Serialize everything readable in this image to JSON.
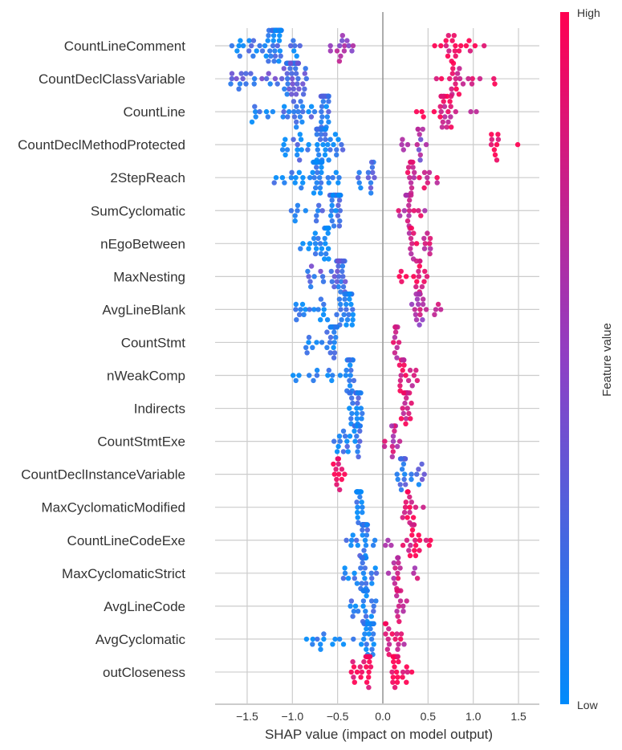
{
  "chart_data": {
    "type": "scatter",
    "subtype": "shap-beeswarm",
    "title": "",
    "xlabel": "SHAP value (impact on model output)",
    "ylabel": "",
    "xlim": [
      -1.85,
      1.75
    ],
    "xticks": [
      -1.5,
      -1.0,
      -0.5,
      0.0,
      0.5,
      1.0,
      1.5
    ],
    "xtick_labels": [
      "−1.5",
      "−1.0",
      "−0.5",
      "0.0",
      "0.5",
      "1.0",
      "1.5"
    ],
    "grid": true,
    "colorbar": {
      "title": "Feature value",
      "high_label": "High",
      "low_label": "Low",
      "low_color": "#008bfb",
      "mid_color": "#8f3fc4",
      "high_color": "#ff0051",
      "placement": "right"
    },
    "features": [
      {
        "name": "CountLineComment",
        "clusters": [
          {
            "min": -1.68,
            "max": -0.88,
            "peak": -1.18,
            "count": 70,
            "value": 0.1
          },
          {
            "min": -0.62,
            "max": -0.27,
            "peak": -0.45,
            "count": 14,
            "value": 0.55
          },
          {
            "min": 0.5,
            "max": 1.22,
            "peak": 0.75,
            "count": 20,
            "value": 0.95
          }
        ]
      },
      {
        "name": "CountDeclClassVariable",
        "clusters": [
          {
            "min": -1.72,
            "max": -0.77,
            "peak": -1.0,
            "count": 90,
            "value": 0.25
          },
          {
            "min": 0.5,
            "max": 1.33,
            "peak": 0.8,
            "count": 22,
            "value": 0.9
          }
        ]
      },
      {
        "name": "CountLine",
        "clusters": [
          {
            "min": -1.47,
            "max": -0.6,
            "peak": -0.62,
            "count": 75,
            "value": 0.15
          },
          {
            "min": 0.3,
            "max": 1.23,
            "peak": 0.7,
            "count": 30,
            "value": 0.85
          }
        ]
      },
      {
        "name": "CountDeclMethodProtected",
        "clusters": [
          {
            "min": -1.12,
            "max": -0.42,
            "peak": -0.68,
            "count": 60,
            "value": 0.12
          },
          {
            "min": 0.17,
            "max": 0.52,
            "peak": 0.4,
            "count": 14,
            "value": 0.55
          },
          {
            "min": 1.1,
            "max": 1.58,
            "peak": 1.22,
            "count": 10,
            "value": 0.98
          }
        ]
      },
      {
        "name": "2StepReach",
        "clusters": [
          {
            "min": -1.21,
            "max": -0.48,
            "peak": -0.72,
            "count": 50,
            "value": 0.05
          },
          {
            "min": -0.28,
            "max": 0.03,
            "peak": -0.13,
            "count": 14,
            "value": 0.2
          },
          {
            "min": 0.27,
            "max": 0.61,
            "peak": 0.32,
            "count": 22,
            "value": 0.8
          }
        ]
      },
      {
        "name": "SumCyclomatic",
        "clusters": [
          {
            "min": -1.02,
            "max": -0.4,
            "peak": -0.52,
            "count": 55,
            "value": 0.15
          },
          {
            "min": 0.08,
            "max": 0.51,
            "peak": 0.28,
            "count": 20,
            "value": 0.75
          }
        ]
      },
      {
        "name": "nEgoBetween",
        "clusters": [
          {
            "min": -0.92,
            "max": -0.6,
            "peak": -0.62,
            "count": 30,
            "value": 0.02
          },
          {
            "min": 0.28,
            "max": 0.53,
            "peak": 0.32,
            "count": 18,
            "value": 0.8
          }
        ]
      },
      {
        "name": "MaxNesting",
        "clusters": [
          {
            "min": -0.85,
            "max": -0.4,
            "peak": -0.47,
            "count": 45,
            "value": 0.25
          },
          {
            "min": 0.18,
            "max": 0.5,
            "peak": 0.38,
            "count": 18,
            "value": 0.92
          }
        ]
      },
      {
        "name": "AvgLineBlank",
        "clusters": [
          {
            "min": -0.98,
            "max": -0.33,
            "peak": -0.38,
            "count": 55,
            "value": 0.05
          },
          {
            "min": 0.3,
            "max": 0.7,
            "peak": 0.38,
            "count": 22,
            "value": 0.65
          }
        ]
      },
      {
        "name": "CountStmt",
        "clusters": [
          {
            "min": -0.9,
            "max": -0.48,
            "peak": -0.55,
            "count": 40,
            "value": 0.08
          },
          {
            "min": 0.1,
            "max": 0.2,
            "peak": 0.14,
            "count": 14,
            "value": 0.8
          }
        ]
      },
      {
        "name": "nWeakComp",
        "clusters": [
          {
            "min": -1.0,
            "max": -0.32,
            "peak": -0.36,
            "count": 32,
            "value": 0.1
          },
          {
            "min": 0.18,
            "max": 0.4,
            "peak": 0.21,
            "count": 22,
            "value": 0.82
          }
        ]
      },
      {
        "name": "Indirects",
        "clusters": [
          {
            "min": -0.38,
            "max": -0.22,
            "peak": -0.27,
            "count": 28,
            "value": 0.15
          },
          {
            "min": 0.2,
            "max": 0.32,
            "peak": 0.27,
            "count": 22,
            "value": 0.82
          }
        ]
      },
      {
        "name": "CountStmtExe",
        "clusters": [
          {
            "min": -0.6,
            "max": -0.25,
            "peak": -0.28,
            "count": 38,
            "value": 0.12
          },
          {
            "min": 0.0,
            "max": 0.2,
            "peak": 0.12,
            "count": 14,
            "value": 0.7
          }
        ]
      },
      {
        "name": "CountDeclInstanceVariable",
        "clusters": [
          {
            "min": -0.6,
            "max": -0.42,
            "peak": -0.5,
            "count": 14,
            "value": 1.0
          },
          {
            "min": 0.14,
            "max": 0.46,
            "peak": 0.22,
            "count": 34,
            "value": 0.2
          }
        ]
      },
      {
        "name": "MaxCyclomaticModified",
        "clusters": [
          {
            "min": -0.3,
            "max": -0.22,
            "peak": -0.28,
            "count": 24,
            "value": 0.05
          },
          {
            "min": 0.2,
            "max": 0.46,
            "peak": 0.28,
            "count": 16,
            "value": 0.92
          }
        ]
      },
      {
        "name": "CountLineCodeExe",
        "clusters": [
          {
            "min": -0.42,
            "max": -0.08,
            "peak": -0.2,
            "count": 42,
            "value": 0.15
          },
          {
            "min": 0.0,
            "max": 0.1,
            "peak": 0.05,
            "count": 3,
            "value": 0.45
          },
          {
            "min": 0.2,
            "max": 0.53,
            "peak": 0.35,
            "count": 20,
            "value": 0.9
          }
        ]
      },
      {
        "name": "MaxCyclomaticStrict",
        "clusters": [
          {
            "min": -0.45,
            "max": -0.05,
            "peak": -0.21,
            "count": 38,
            "value": 0.12
          },
          {
            "min": -0.02,
            "max": 0.4,
            "peak": 0.15,
            "count": 18,
            "value": 0.75
          }
        ]
      },
      {
        "name": "AvgLineCode",
        "clusters": [
          {
            "min": -0.36,
            "max": -0.07,
            "peak": -0.2,
            "count": 32,
            "value": 0.1
          },
          {
            "min": 0.05,
            "max": 0.32,
            "peak": 0.18,
            "count": 14,
            "value": 0.78
          }
        ]
      },
      {
        "name": "AvgCyclomatic",
        "clusters": [
          {
            "min": -0.93,
            "max": -0.1,
            "peak": -0.15,
            "count": 45,
            "value": 0.05
          },
          {
            "min": 0.0,
            "max": 0.24,
            "peak": 0.05,
            "count": 16,
            "value": 0.8
          }
        ]
      },
      {
        "name": "outCloseness",
        "clusters": [
          {
            "min": -0.35,
            "max": -0.12,
            "peak": -0.16,
            "count": 26,
            "value": 0.98
          },
          {
            "min": 0.1,
            "max": 0.34,
            "peak": 0.14,
            "count": 26,
            "value": 0.98
          }
        ]
      }
    ]
  }
}
